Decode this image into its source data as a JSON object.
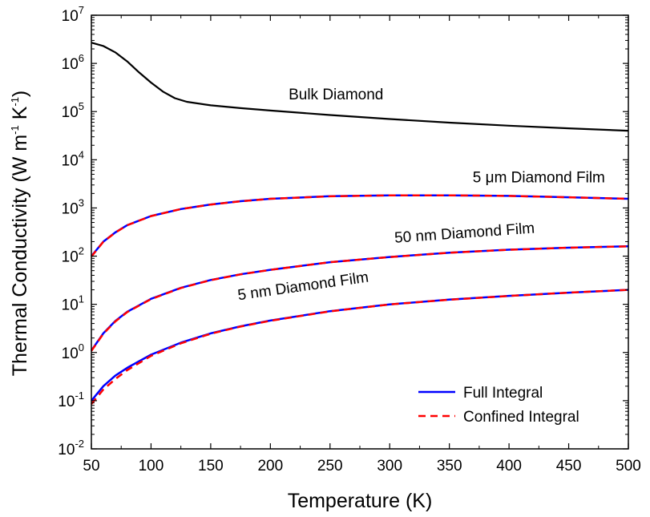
{
  "chart_data": {
    "type": "line",
    "xlabel": "Temperature (K)",
    "ylabel": {
      "parts": [
        "Thermal Conductivity (W m",
        "-1",
        " K",
        "-1",
        ")"
      ]
    },
    "xlim": [
      50,
      500
    ],
    "ylim": [
      0.01,
      10000000
    ],
    "yscale": "log",
    "grid": false,
    "x_ticks": [
      "50",
      "100",
      "150",
      "200",
      "250",
      "300",
      "350",
      "400",
      "450",
      "500"
    ],
    "y_ticks": [
      {
        "value": 0.01,
        "base": "10",
        "exp": "-2"
      },
      {
        "value": 0.1,
        "base": "10",
        "exp": "-1"
      },
      {
        "value": 1,
        "base": "10",
        "exp": "0"
      },
      {
        "value": 10,
        "base": "10",
        "exp": "1"
      },
      {
        "value": 100,
        "base": "10",
        "exp": "2"
      },
      {
        "value": 1000,
        "base": "10",
        "exp": "3"
      },
      {
        "value": 10000,
        "base": "10",
        "exp": "4"
      },
      {
        "value": 100000,
        "base": "10",
        "exp": "5"
      },
      {
        "value": 1000000,
        "base": "10",
        "exp": "6"
      },
      {
        "value": 10000000,
        "base": "10",
        "exp": "7"
      }
    ],
    "legend_position": "bottom-right",
    "legend": [
      {
        "label": "Full Integral",
        "color": "#0000ff",
        "style": "solid"
      },
      {
        "label": "Confined Integral",
        "color": "#ff0000",
        "style": "dashed"
      }
    ],
    "curves": [
      {
        "annotation": "Bulk Diamond",
        "annotation_x": 255,
        "annotation_y": 180000,
        "annotation_rotate": 0,
        "x": [
          50,
          60,
          70,
          80,
          90,
          100,
          110,
          120,
          130,
          150,
          175,
          200,
          250,
          300,
          350,
          400,
          450,
          500
        ],
        "full": [
          2700000,
          2300000,
          1700000,
          1100000,
          650000,
          400000,
          260000,
          190000,
          160000,
          135000,
          118000,
          105000,
          85000,
          70000,
          59000,
          51000,
          45000,
          40000
        ]
      },
      {
        "annotation": "5 μm Diamond Film",
        "annotation_x": 425,
        "annotation_y": 3400,
        "annotation_rotate": 0,
        "x": [
          50,
          60,
          70,
          80,
          100,
          125,
          150,
          175,
          200,
          250,
          300,
          350,
          400,
          450,
          500
        ],
        "full": [
          100,
          200,
          310,
          440,
          680,
          950,
          1180,
          1380,
          1550,
          1750,
          1830,
          1830,
          1780,
          1670,
          1550
        ],
        "confined": [
          98,
          198,
          308,
          438,
          678,
          948,
          1178,
          1378,
          1548,
          1748,
          1828,
          1828,
          1778,
          1668,
          1548
        ]
      },
      {
        "annotation": "50 nm Diamond Film",
        "annotation_x": 363,
        "annotation_y": 240,
        "annotation_rotate": -4,
        "x": [
          50,
          60,
          70,
          80,
          100,
          125,
          150,
          175,
          200,
          250,
          300,
          350,
          400,
          450,
          500
        ],
        "full": [
          1.1,
          2.5,
          4.5,
          7,
          13,
          22,
          32,
          42,
          52,
          75,
          96,
          118,
          136,
          150,
          160
        ],
        "confined": [
          1.08,
          2.45,
          4.4,
          6.9,
          12.8,
          21.8,
          31.8,
          41.8,
          51.8,
          74.8,
          95.8,
          117.8,
          135.8,
          149.8,
          159.8
        ]
      },
      {
        "annotation": "5 nm Diamond Film",
        "annotation_x": 228,
        "annotation_y": 19,
        "annotation_rotate": -8,
        "x": [
          50,
          60,
          70,
          80,
          100,
          125,
          150,
          175,
          200,
          250,
          300,
          350,
          400,
          450,
          500
        ],
        "full": [
          0.1,
          0.2,
          0.33,
          0.48,
          0.9,
          1.6,
          2.5,
          3.5,
          4.6,
          7.2,
          10,
          12.5,
          15,
          17.5,
          20
        ],
        "confined": [
          0.085,
          0.17,
          0.28,
          0.43,
          0.85,
          1.55,
          2.45,
          3.45,
          4.55,
          7.15,
          9.95,
          12.45,
          14.95,
          17.45,
          19.95
        ]
      }
    ]
  }
}
